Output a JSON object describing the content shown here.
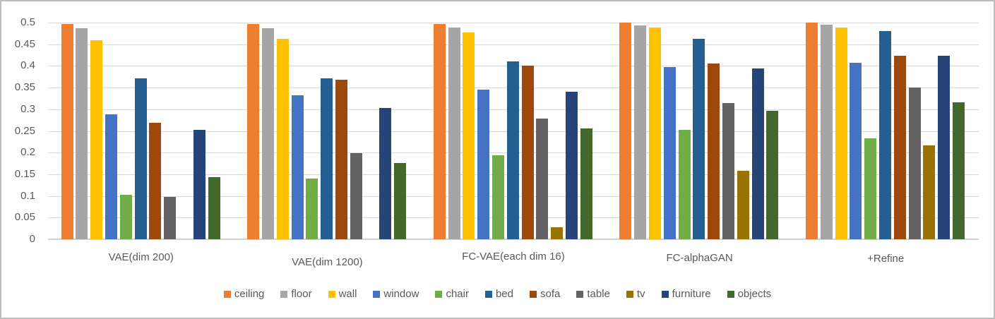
{
  "chart_data": {
    "type": "bar",
    "title": "",
    "xlabel": "",
    "ylabel": "",
    "ylim": [
      0,
      0.5
    ],
    "grid": true,
    "legend_position": "bottom",
    "y_ticks": [
      "0",
      "0.05",
      "0.1",
      "0.15",
      "0.2",
      "0.25",
      "0.3",
      "0.35",
      "0.4",
      "0.45",
      "0.5"
    ],
    "categories": [
      "VAE(dim 200)",
      "VAE(dim 1200)",
      "FC-VAE(each dim 16)",
      "FC-alphaGAN",
      "+Refine"
    ],
    "series": [
      {
        "name": "ceiling",
        "color": "#ED7D31",
        "values": [
          0.496,
          0.496,
          0.497,
          0.5,
          0.5
        ]
      },
      {
        "name": "floor",
        "color": "#A5A5A5",
        "values": [
          0.487,
          0.487,
          0.489,
          0.494,
          0.495
        ]
      },
      {
        "name": "wall",
        "color": "#FFC000",
        "values": [
          0.46,
          0.463,
          0.477,
          0.489,
          0.489
        ]
      },
      {
        "name": "window",
        "color": "#4472C4",
        "values": [
          0.289,
          0.333,
          0.345,
          0.397,
          0.407
        ]
      },
      {
        "name": "chair",
        "color": "#70AD47",
        "values": [
          0.103,
          0.14,
          0.194,
          0.253,
          0.233
        ]
      },
      {
        "name": "bed",
        "color": "#255E91",
        "values": [
          0.371,
          0.371,
          0.411,
          0.462,
          0.481
        ]
      },
      {
        "name": "sofa",
        "color": "#9E480E",
        "values": [
          0.268,
          0.368,
          0.4,
          0.406,
          0.423
        ]
      },
      {
        "name": "table",
        "color": "#636363",
        "values": [
          0.098,
          0.199,
          0.278,
          0.315,
          0.35
        ]
      },
      {
        "name": "tv",
        "color": "#997300",
        "values": [
          0,
          0,
          0.027,
          0.158,
          0.216
        ]
      },
      {
        "name": "furniture",
        "color": "#264478",
        "values": [
          0.253,
          0.303,
          0.341,
          0.394,
          0.424
        ]
      },
      {
        "name": "objects",
        "color": "#43682B",
        "values": [
          0.143,
          0.176,
          0.255,
          0.297,
          0.316
        ]
      }
    ]
  }
}
